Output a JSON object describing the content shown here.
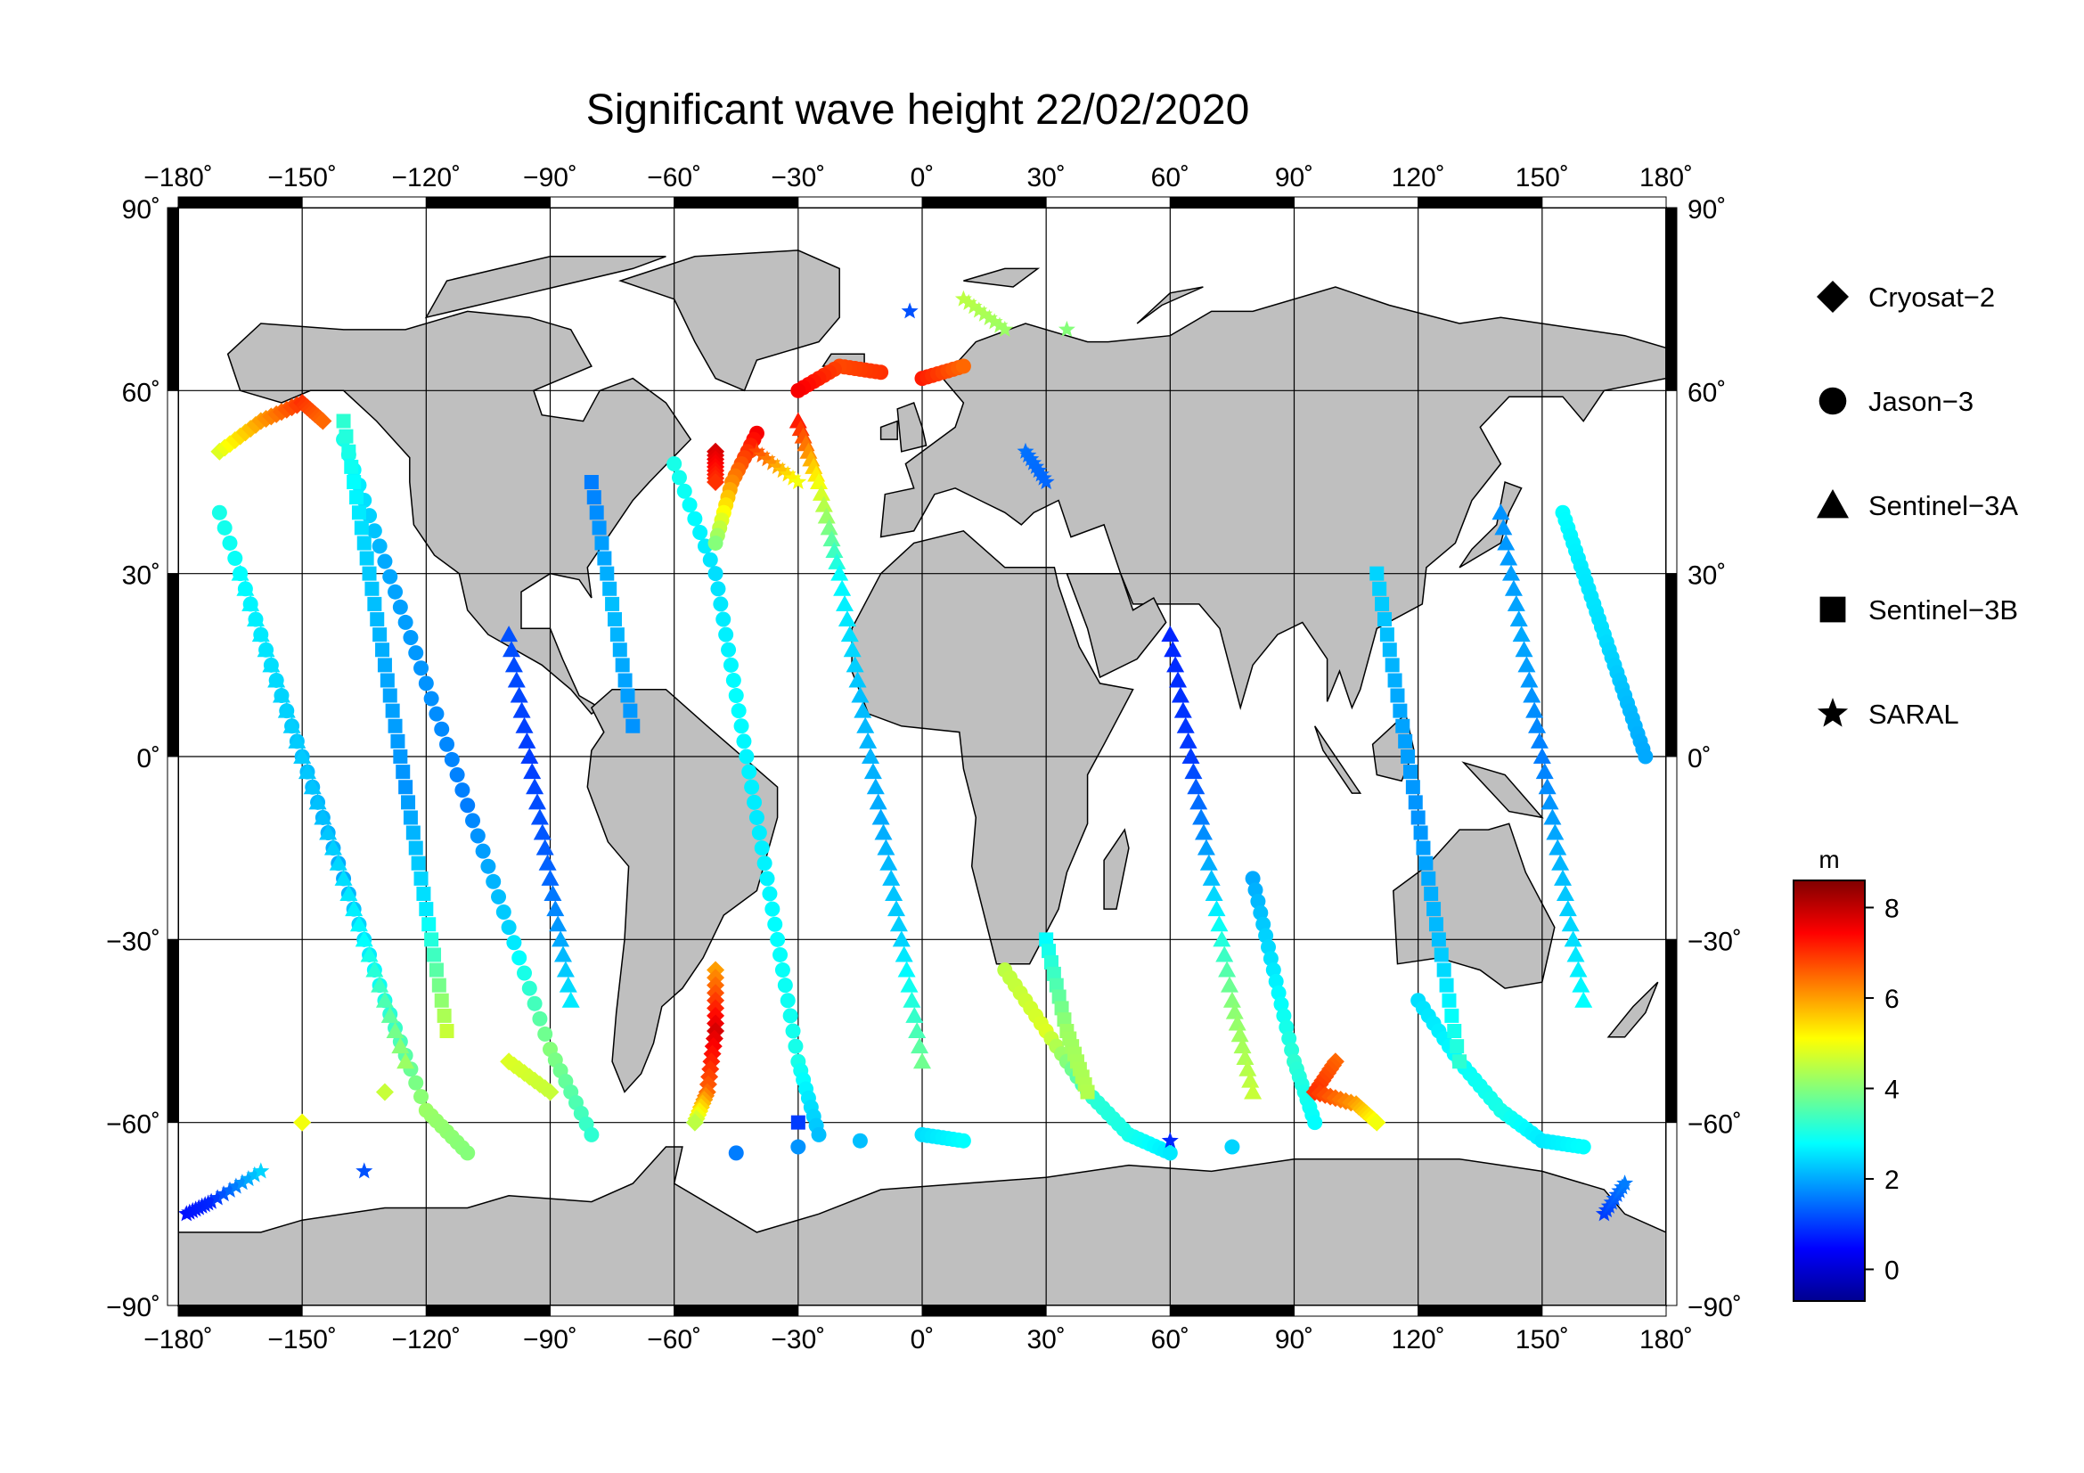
{
  "title": "Significant wave height 22/02/2020",
  "map": {
    "projection": "equirectangular",
    "lon_range": [
      -180,
      180
    ],
    "lat_range": [
      -90,
      90
    ],
    "lon_ticks": [
      -180,
      -150,
      -120,
      -90,
      -60,
      -30,
      0,
      30,
      60,
      90,
      120,
      150,
      180
    ],
    "lat_ticks": [
      90,
      60,
      30,
      0,
      -30,
      -60,
      -90
    ],
    "lon_tick_labels": [
      "−180˚",
      "−150˚",
      "−120˚",
      "−90˚",
      "−60˚",
      "−30˚",
      "0˚",
      "30˚",
      "60˚",
      "90˚",
      "120˚",
      "150˚",
      "180˚"
    ],
    "lat_tick_labels_left": [
      "90˚",
      "60˚",
      "30˚",
      "0˚",
      "−30˚",
      "−60˚",
      "−90˚"
    ],
    "lat_tick_labels_right": [
      "90˚",
      "60˚",
      "30˚",
      "0˚",
      "−30˚",
      "−60˚",
      "−90˚"
    ],
    "land_color": "#bfbfbf",
    "ocean_color": "#ffffff",
    "grid": true
  },
  "legend": {
    "items": [
      {
        "label": "Cryosat−2",
        "symbol": "diamond"
      },
      {
        "label": "Jason−3",
        "symbol": "circle"
      },
      {
        "label": "Sentinel−3A",
        "symbol": "triangle"
      },
      {
        "label": "Sentinel−3B",
        "symbol": "square"
      },
      {
        "label": "SARAL",
        "symbol": "star"
      }
    ]
  },
  "colorbar": {
    "unit": "m",
    "min": -0.7,
    "max": 8.6,
    "ticks": [
      0,
      2,
      4,
      6,
      8
    ],
    "tick_labels": [
      "0",
      "2",
      "4",
      "6",
      "8"
    ],
    "colormap": "jet"
  },
  "chart_data": {
    "type": "scatter",
    "title": "Significant wave height 22/02/2020",
    "xlabel": "",
    "ylabel": "",
    "xlim": [
      -180,
      180
    ],
    "ylim": [
      -90,
      90
    ],
    "color_variable": "significant wave height (m)",
    "series": [
      {
        "name": "Jason−3",
        "marker": "circle",
        "points": [
          [
            -170,
            40,
            3.0
          ],
          [
            -160,
            20,
            2.6
          ],
          [
            -150,
            0,
            2.2
          ],
          [
            -140,
            -20,
            2.0
          ],
          [
            -130,
            -40,
            3.0
          ],
          [
            -120,
            -58,
            4.2
          ],
          [
            -110,
            -65,
            4.0
          ],
          [
            -140,
            52,
            3.0
          ],
          [
            -130,
            32,
            2.0
          ],
          [
            -120,
            12,
            1.8
          ],
          [
            -110,
            -8,
            1.6
          ],
          [
            -100,
            -28,
            2.4
          ],
          [
            -90,
            -48,
            4.0
          ],
          [
            -80,
            -62,
            3.2
          ],
          [
            -60,
            48,
            3.0
          ],
          [
            -50,
            30,
            2.5
          ],
          [
            -45,
            10,
            2.8
          ],
          [
            -40,
            -10,
            2.6
          ],
          [
            -35,
            -30,
            2.8
          ],
          [
            -30,
            -50,
            3.0
          ],
          [
            -25,
            -62,
            2.2
          ],
          [
            -40,
            53,
            7.5
          ],
          [
            -46,
            45,
            6.2
          ],
          [
            -50,
            35,
            4.0
          ],
          [
            0,
            62,
            7.2
          ],
          [
            10,
            64,
            6.5
          ],
          [
            -10,
            63,
            7.0
          ],
          [
            -20,
            64,
            6.8
          ],
          [
            -30,
            60,
            7.5
          ],
          [
            20,
            -35,
            4.5
          ],
          [
            30,
            -45,
            4.8
          ],
          [
            40,
            -55,
            3.2
          ],
          [
            50,
            -62,
            3.0
          ],
          [
            60,
            -65,
            2.6
          ],
          [
            75,
            -64,
            2.4
          ],
          [
            80,
            -20,
            2.0
          ],
          [
            85,
            -35,
            2.6
          ],
          [
            90,
            -50,
            3.2
          ],
          [
            95,
            -60,
            2.8
          ],
          [
            120,
            -40,
            2.5
          ],
          [
            130,
            -50,
            2.8
          ],
          [
            140,
            -58,
            3.0
          ],
          [
            150,
            -63,
            2.6
          ],
          [
            160,
            -64,
            2.8
          ],
          [
            155,
            40,
            2.8
          ],
          [
            160,
            30,
            2.6
          ],
          [
            165,
            20,
            2.5
          ],
          [
            170,
            10,
            2.2
          ],
          [
            175,
            0,
            2.0
          ],
          [
            -45,
            -65,
            1.6
          ],
          [
            -30,
            -64,
            1.8
          ],
          [
            -15,
            -63,
            2.2
          ],
          [
            0,
            -62,
            2.5
          ],
          [
            10,
            -63,
            2.8
          ]
        ]
      },
      {
        "name": "Cryosat−2",
        "marker": "diamond",
        "points": [
          [
            -50,
            50,
            7.8
          ],
          [
            -50,
            45,
            7.0
          ],
          [
            -50,
            -35,
            6.0
          ],
          [
            -50,
            -45,
            7.8
          ],
          [
            -52,
            -55,
            6.5
          ],
          [
            -55,
            -60,
            4.5
          ],
          [
            -150,
            -60,
            5.0
          ],
          [
            -130,
            -55,
            4.6
          ],
          [
            -100,
            -50,
            4.8
          ],
          [
            -90,
            -55,
            4.6
          ],
          [
            100,
            -50,
            6.5
          ],
          [
            95,
            -55,
            7.0
          ],
          [
            105,
            -57,
            6.0
          ],
          [
            110,
            -60,
            5.0
          ],
          [
            -170,
            50,
            4.8
          ],
          [
            -160,
            55,
            6.0
          ],
          [
            -150,
            58,
            7.0
          ],
          [
            -145,
            55,
            6.5
          ]
        ]
      },
      {
        "name": "Sentinel−3A",
        "marker": "triangle",
        "points": [
          [
            -165,
            30,
            2.8
          ],
          [
            -155,
            10,
            2.4
          ],
          [
            -145,
            -10,
            2.2
          ],
          [
            -135,
            -30,
            2.8
          ],
          [
            -125,
            -50,
            4.2
          ],
          [
            -100,
            20,
            1.2
          ],
          [
            -95,
            0,
            1.0
          ],
          [
            -90,
            -20,
            1.4
          ],
          [
            -85,
            -40,
            2.6
          ],
          [
            -30,
            55,
            7.2
          ],
          [
            -25,
            45,
            5.0
          ],
          [
            -20,
            30,
            2.8
          ],
          [
            -15,
            10,
            2.2
          ],
          [
            -10,
            -10,
            2.0
          ],
          [
            -5,
            -30,
            2.4
          ],
          [
            0,
            -50,
            3.8
          ],
          [
            60,
            20,
            0.8
          ],
          [
            65,
            0,
            1.0
          ],
          [
            70,
            -20,
            2.2
          ],
          [
            75,
            -40,
            4.0
          ],
          [
            80,
            -55,
            4.6
          ],
          [
            140,
            40,
            1.8
          ],
          [
            145,
            20,
            2.0
          ],
          [
            150,
            0,
            1.6
          ],
          [
            155,
            -20,
            2.2
          ],
          [
            160,
            -40,
            2.8
          ]
        ]
      },
      {
        "name": "Sentinel−3B",
        "marker": "square",
        "points": [
          [
            -140,
            55,
            3.2
          ],
          [
            -135,
            35,
            2.4
          ],
          [
            -130,
            15,
            2.0
          ],
          [
            -125,
            -5,
            1.8
          ],
          [
            -120,
            -25,
            2.6
          ],
          [
            -115,
            -45,
            4.6
          ],
          [
            30,
            -30,
            2.8
          ],
          [
            35,
            -45,
            4.2
          ],
          [
            40,
            -55,
            4.4
          ],
          [
            110,
            30,
            2.4
          ],
          [
            115,
            10,
            2.0
          ],
          [
            120,
            -10,
            1.8
          ],
          [
            125,
            -30,
            2.2
          ],
          [
            130,
            -50,
            3.2
          ],
          [
            -30,
            -60,
            1.0
          ],
          [
            -80,
            45,
            1.6
          ],
          [
            -75,
            25,
            2.2
          ],
          [
            -70,
            5,
            1.8
          ]
        ]
      },
      {
        "name": "SARAL",
        "marker": "star",
        "points": [
          [
            -178,
            -75,
            0.6
          ],
          [
            -172,
            -73,
            0.8
          ],
          [
            -160,
            -68,
            2.4
          ],
          [
            -135,
            -68,
            1.2
          ],
          [
            -3,
            73,
            1.2
          ],
          [
            10,
            75,
            4.5
          ],
          [
            20,
            70,
            4.2
          ],
          [
            35,
            70,
            4.0
          ],
          [
            -40,
            50,
            6.8
          ],
          [
            -30,
            45,
            5.0
          ],
          [
            60,
            -63,
            0.8
          ],
          [
            165,
            -75,
            1.0
          ],
          [
            170,
            -70,
            1.6
          ],
          [
            25,
            50,
            1.5
          ],
          [
            30,
            45,
            1.4
          ]
        ]
      }
    ]
  }
}
